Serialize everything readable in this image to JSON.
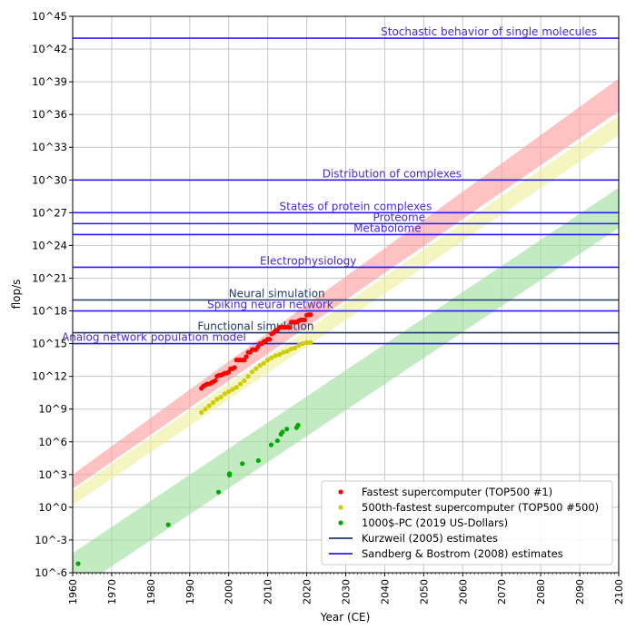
{
  "chart_data": {
    "type": "scatter",
    "title": "",
    "xlabel": "Year (CE)",
    "ylabel": "flop/s",
    "xlim": [
      1960,
      2100
    ],
    "ylim_log10": [
      -6,
      45
    ],
    "y_scale": "log10",
    "grid": true,
    "legend_position": "lower right",
    "x_ticks": [
      1960,
      1970,
      1980,
      1990,
      2000,
      2010,
      2020,
      2030,
      2040,
      2050,
      2060,
      2070,
      2080,
      2090,
      2100
    ],
    "y_ticks_log10": [
      -6,
      -3,
      0,
      3,
      6,
      9,
      12,
      15,
      18,
      21,
      24,
      27,
      30,
      33,
      36,
      39,
      42,
      45
    ],
    "y_tick_labels": [
      "10^-6",
      "10^-3",
      "10^0",
      "10^3",
      "10^6",
      "10^9",
      "10^12",
      "10^15",
      "10^18",
      "10^21",
      "10^24",
      "10^27",
      "10^30",
      "10^33",
      "10^36",
      "10^39",
      "10^42",
      "10^45"
    ],
    "series": [
      {
        "name": "Fastest supercomputer (TOP500 #1)",
        "marker": "dot",
        "color": "#ff0000",
        "points_log10": [
          [
            1993.0,
            10.9
          ],
          [
            1993.5,
            11.1
          ],
          [
            1994.0,
            11.2
          ],
          [
            1994.5,
            11.3
          ],
          [
            1995.0,
            11.3
          ],
          [
            1995.5,
            11.4
          ],
          [
            1996.0,
            11.5
          ],
          [
            1996.5,
            11.6
          ],
          [
            1997.0,
            12.0
          ],
          [
            1997.5,
            12.1
          ],
          [
            1998.0,
            12.1
          ],
          [
            1998.5,
            12.2
          ],
          [
            1999.0,
            12.3
          ],
          [
            1999.5,
            12.3
          ],
          [
            2000.0,
            12.4
          ],
          [
            2000.5,
            12.7
          ],
          [
            2001.0,
            12.7
          ],
          [
            2001.5,
            12.8
          ],
          [
            2002.0,
            13.5
          ],
          [
            2002.5,
            13.5
          ],
          [
            2003.0,
            13.5
          ],
          [
            2003.5,
            13.5
          ],
          [
            2004.0,
            13.5
          ],
          [
            2004.5,
            13.8
          ],
          [
            2005.0,
            14.2
          ],
          [
            2005.5,
            14.2
          ],
          [
            2006.0,
            14.45
          ],
          [
            2006.5,
            14.45
          ],
          [
            2007.0,
            14.45
          ],
          [
            2007.5,
            14.7
          ],
          [
            2008.0,
            15.0
          ],
          [
            2008.5,
            15.0
          ],
          [
            2009.0,
            15.2
          ],
          [
            2009.5,
            15.25
          ],
          [
            2010.0,
            15.4
          ],
          [
            2010.5,
            15.4
          ],
          [
            2011.0,
            15.9
          ],
          [
            2011.5,
            16.0
          ],
          [
            2012.0,
            16.2
          ],
          [
            2012.5,
            16.25
          ],
          [
            2013.0,
            16.5
          ],
          [
            2013.5,
            16.5
          ],
          [
            2014.0,
            16.5
          ],
          [
            2014.5,
            16.5
          ],
          [
            2015.0,
            16.5
          ],
          [
            2015.5,
            16.5
          ],
          [
            2016.0,
            16.97
          ],
          [
            2016.5,
            16.97
          ],
          [
            2017.0,
            16.97
          ],
          [
            2017.5,
            16.97
          ],
          [
            2018.0,
            17.1
          ],
          [
            2018.5,
            17.17
          ],
          [
            2019.0,
            17.17
          ],
          [
            2019.5,
            17.17
          ],
          [
            2020.0,
            17.6
          ],
          [
            2020.5,
            17.65
          ],
          [
            2021.0,
            17.65
          ]
        ]
      },
      {
        "name": "500th-fastest supercomputer (TOP500 #500)",
        "marker": "dot",
        "color": "#cccc00",
        "points_log10": [
          [
            1993.0,
            8.7
          ],
          [
            1994.0,
            9.0
          ],
          [
            1995.0,
            9.3
          ],
          [
            1996.0,
            9.6
          ],
          [
            1997.0,
            9.9
          ],
          [
            1998.0,
            10.1
          ],
          [
            1999.0,
            10.4
          ],
          [
            2000.0,
            10.6
          ],
          [
            2001.0,
            10.8
          ],
          [
            2002.0,
            11.0
          ],
          [
            2003.0,
            11.3
          ],
          [
            2004.0,
            11.6
          ],
          [
            2005.0,
            12.0
          ],
          [
            2006.0,
            12.4
          ],
          [
            2007.0,
            12.7
          ],
          [
            2008.0,
            13.0
          ],
          [
            2009.0,
            13.2
          ],
          [
            2010.0,
            13.5
          ],
          [
            2011.0,
            13.7
          ],
          [
            2012.0,
            13.9
          ],
          [
            2013.0,
            14.0
          ],
          [
            2014.0,
            14.2
          ],
          [
            2015.0,
            14.3
          ],
          [
            2016.0,
            14.5
          ],
          [
            2017.0,
            14.6
          ],
          [
            2018.0,
            14.85
          ],
          [
            2019.0,
            15.0
          ],
          [
            2020.0,
            15.1
          ],
          [
            2021.0,
            15.1
          ]
        ]
      },
      {
        "name": "1000$-PC (2019 US-Dollars)",
        "marker": "dot",
        "color": "#00aa00",
        "points_log10": [
          [
            1961.4,
            -5.17
          ],
          [
            1984.5,
            -1.6
          ],
          [
            1997.4,
            1.39
          ],
          [
            2000.2,
            2.95
          ],
          [
            2000.2,
            3.08
          ],
          [
            2003.5,
            4.0
          ],
          [
            2007.6,
            4.28
          ],
          [
            2010.9,
            5.72
          ],
          [
            2012.5,
            6.1
          ],
          [
            2013.4,
            6.7
          ],
          [
            2013.8,
            6.9
          ],
          [
            2014.9,
            7.17
          ],
          [
            2017.4,
            7.3
          ],
          [
            2017.8,
            7.53
          ]
        ]
      }
    ],
    "bands": [
      {
        "for_series": "Fastest supercomputer (TOP500 #1)",
        "color": "#ff9999",
        "x": [
          1960,
          2100
        ],
        "lower_log10": [
          1.7,
          36.3
        ],
        "upper_log10": [
          3.0,
          39.3
        ]
      },
      {
        "for_series": "500th-fastest supercomputer (TOP500 #500)",
        "color": "#eeee99",
        "x": [
          1960,
          2100
        ],
        "lower_log10": [
          0.2,
          34.1
        ],
        "upper_log10": [
          1.5,
          35.9
        ]
      },
      {
        "for_series": "1000$-PC (2019 US-Dollars)",
        "color": "#99dd99",
        "x": [
          1960,
          2100
        ],
        "lower_log10": [
          -7.8,
          25.6
        ],
        "upper_log10": [
          -4.2,
          29.3
        ]
      }
    ],
    "reference_lines": [
      {
        "label": "Stochastic behavior of single molecules",
        "log10": 43,
        "source": "Sandberg & Bostrom (2008) estimates",
        "label_x": 2039
      },
      {
        "label": "Distribution of complexes",
        "log10": 30,
        "source": "Sandberg & Bostrom (2008) estimates",
        "label_x": 2024
      },
      {
        "label": "States of protein complexes",
        "log10": 27,
        "source": "Sandberg & Bostrom (2008) estimates",
        "label_x": 2013
      },
      {
        "label": "Proteome",
        "log10": 26,
        "source": "Sandberg & Bostrom (2008) estimates",
        "label_x": 2037
      },
      {
        "label": "Metabolome",
        "log10": 25,
        "source": "Sandberg & Bostrom (2008) estimates",
        "label_x": 2032
      },
      {
        "label": "Electrophysiology",
        "log10": 22,
        "source": "Sandberg & Bostrom (2008) estimates",
        "label_x": 2008
      },
      {
        "label": "Neural simulation",
        "log10": 19,
        "source": "Kurzweil (2005) estimates",
        "label_x": 2000
      },
      {
        "label": "Spiking neural network",
        "log10": 18,
        "source": "Sandberg & Bostrom (2008) estimates",
        "label_x": 1994.5
      },
      {
        "label": "Functional simulation",
        "log10": 16,
        "source": "Kurzweil (2005) estimates",
        "label_x": 1992
      },
      {
        "label": "Analog network population model",
        "log10": 15,
        "source": "Sandberg & Bostrom (2008) estimates",
        "label_x": 1960
      }
    ],
    "legend": [
      {
        "label": "Fastest supercomputer (TOP500 #1)",
        "kind": "dot",
        "color": "#ff0000"
      },
      {
        "label": "500th-fastest supercomputer (TOP500 #500)",
        "kind": "dot",
        "color": "#cccc00"
      },
      {
        "label": "1000$-PC (2019 US-Dollars)",
        "kind": "dot",
        "color": "#00aa00"
      },
      {
        "label": "Kurzweil (2005) estimates",
        "kind": "line",
        "color": "#1f3a6e"
      },
      {
        "label": "Sandberg & Bostrom (2008) estimates",
        "kind": "line",
        "color": "#2a1aff"
      }
    ]
  },
  "colors": {
    "kurzweil": "#1f3a6e",
    "sandberg": "#2a1aff",
    "sandberg_text": "#4a2ad6",
    "grid": "#c8c8c8",
    "axis": "#000000"
  }
}
